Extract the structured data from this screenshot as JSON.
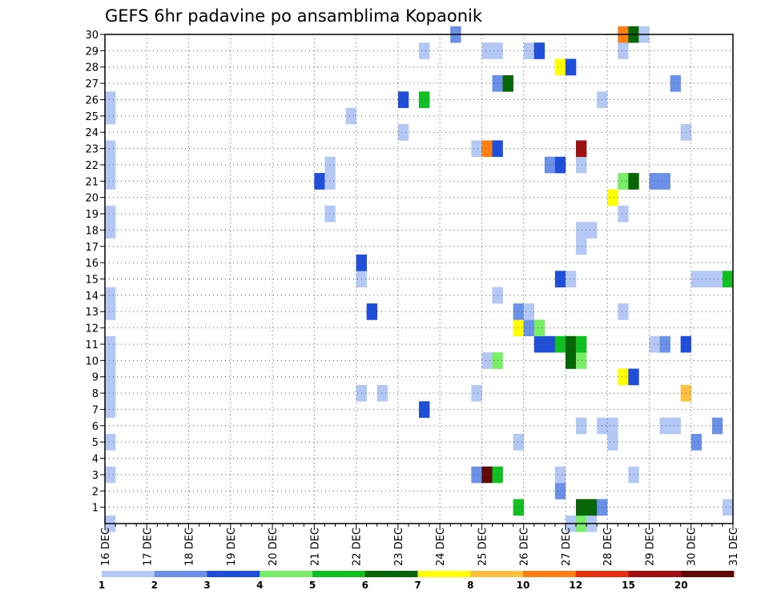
{
  "chart_data": {
    "type": "heatmap",
    "title": "GEFS 6hr padavine po ansamblima Kopaonik",
    "x_labels": [
      "16 DEC",
      "17 DEC",
      "18 DEC",
      "19 DEC",
      "20 DEC",
      "21 DEC",
      "22 DEC",
      "23 DEC",
      "24 DEC",
      "25 DEC",
      "26 DEC",
      "27 DEC",
      "28 DEC",
      "29 DEC",
      "30 DEC",
      "31 DEC"
    ],
    "y_labels": [
      "1",
      "2",
      "3",
      "4",
      "5",
      "6",
      "7",
      "8",
      "9",
      "10",
      "11",
      "12",
      "13",
      "14",
      "15",
      "16",
      "17",
      "18",
      "19",
      "20",
      "21",
      "22",
      "23",
      "24",
      "25",
      "26",
      "27",
      "28",
      "29",
      "30"
    ],
    "xlim": [
      0,
      60
    ],
    "ylim": [
      0,
      30
    ],
    "x_units": "6-hour steps from 16 DEC 00Z",
    "grid": true,
    "colorbar": {
      "labels": [
        "1",
        "2",
        "3",
        "4",
        "5",
        "6",
        "7",
        "8",
        "10",
        "12",
        "15",
        "20"
      ],
      "colors": [
        "#b4c8f5",
        "#6a90e8",
        "#1f4fd8",
        "#77ee66",
        "#10c020",
        "#066606",
        "#ffff00",
        "#ffc040",
        "#ff8010",
        "#e83010",
        "#a01010",
        "#600808"
      ]
    },
    "cells": [
      {
        "x": 0,
        "y": 0,
        "v": 1
      },
      {
        "x": 0,
        "y": 3,
        "v": 1
      },
      {
        "x": 0,
        "y": 5,
        "v": 1
      },
      {
        "x": 0,
        "y": 7,
        "v": 1
      },
      {
        "x": 0,
        "y": 8,
        "v": 1
      },
      {
        "x": 0,
        "y": 9,
        "v": 1
      },
      {
        "x": 0,
        "y": 10,
        "v": 1
      },
      {
        "x": 0,
        "y": 11,
        "v": 1
      },
      {
        "x": 0,
        "y": 13,
        "v": 1
      },
      {
        "x": 0,
        "y": 14,
        "v": 1
      },
      {
        "x": 0,
        "y": 18,
        "v": 1
      },
      {
        "x": 0,
        "y": 19,
        "v": 1
      },
      {
        "x": 0,
        "y": 21,
        "v": 1
      },
      {
        "x": 0,
        "y": 22,
        "v": 1
      },
      {
        "x": 0,
        "y": 23,
        "v": 1
      },
      {
        "x": 0,
        "y": 25,
        "v": 1
      },
      {
        "x": 0,
        "y": 26,
        "v": 1
      },
      {
        "x": 20,
        "y": 21,
        "v": 3
      },
      {
        "x": 21,
        "y": 21,
        "v": 1
      },
      {
        "x": 21,
        "y": 22,
        "v": 1
      },
      {
        "x": 21,
        "y": 19,
        "v": 1
      },
      {
        "x": 23,
        "y": 25,
        "v": 1
      },
      {
        "x": 24,
        "y": 8,
        "v": 1
      },
      {
        "x": 24,
        "y": 15,
        "v": 1
      },
      {
        "x": 24,
        "y": 16,
        "v": 3
      },
      {
        "x": 25,
        "y": 13,
        "v": 3
      },
      {
        "x": 26,
        "y": 8,
        "v": 1
      },
      {
        "x": 28,
        "y": 24,
        "v": 1
      },
      {
        "x": 28,
        "y": 26,
        "v": 3
      },
      {
        "x": 30,
        "y": 7,
        "v": 3
      },
      {
        "x": 30,
        "y": 26,
        "v": 5
      },
      {
        "x": 30,
        "y": 29,
        "v": 1
      },
      {
        "x": 33,
        "y": 30,
        "v": 2
      },
      {
        "x": 35,
        "y": 3,
        "v": 2
      },
      {
        "x": 35,
        "y": 8,
        "v": 1
      },
      {
        "x": 35,
        "y": 23,
        "v": 1
      },
      {
        "x": 36,
        "y": 3,
        "v": 20
      },
      {
        "x": 36,
        "y": 10,
        "v": 1
      },
      {
        "x": 36,
        "y": 23,
        "v": 10
      },
      {
        "x": 36,
        "y": 29,
        "v": 1
      },
      {
        "x": 37,
        "y": 3,
        "v": 5
      },
      {
        "x": 37,
        "y": 10,
        "v": 4
      },
      {
        "x": 37,
        "y": 14,
        "v": 1
      },
      {
        "x": 37,
        "y": 23,
        "v": 3
      },
      {
        "x": 37,
        "y": 27,
        "v": 2
      },
      {
        "x": 37,
        "y": 29,
        "v": 1
      },
      {
        "x": 38,
        "y": 27,
        "v": 6
      },
      {
        "x": 39,
        "y": 1,
        "v": 5
      },
      {
        "x": 39,
        "y": 5,
        "v": 1
      },
      {
        "x": 39,
        "y": 12,
        "v": 7
      },
      {
        "x": 39,
        "y": 13,
        "v": 2
      },
      {
        "x": 40,
        "y": 12,
        "v": 2
      },
      {
        "x": 40,
        "y": 13,
        "v": 1
      },
      {
        "x": 40,
        "y": 29,
        "v": 1
      },
      {
        "x": 41,
        "y": 11,
        "v": 3
      },
      {
        "x": 41,
        "y": 12,
        "v": 4
      },
      {
        "x": 41,
        "y": 29,
        "v": 3
      },
      {
        "x": 42,
        "y": 11,
        "v": 3
      },
      {
        "x": 42,
        "y": 22,
        "v": 2
      },
      {
        "x": 43,
        "y": 2,
        "v": 2
      },
      {
        "x": 43,
        "y": 3,
        "v": 1
      },
      {
        "x": 43,
        "y": 11,
        "v": 5
      },
      {
        "x": 43,
        "y": 15,
        "v": 3
      },
      {
        "x": 43,
        "y": 22,
        "v": 3
      },
      {
        "x": 43,
        "y": 28,
        "v": 7
      },
      {
        "x": 44,
        "y": 0,
        "v": 1
      },
      {
        "x": 44,
        "y": 10,
        "v": 6
      },
      {
        "x": 44,
        "y": 11,
        "v": 6
      },
      {
        "x": 44,
        "y": 15,
        "v": 1
      },
      {
        "x": 44,
        "y": 28,
        "v": 3
      },
      {
        "x": 45,
        "y": 0,
        "v": 4
      },
      {
        "x": 45,
        "y": 1,
        "v": 6
      },
      {
        "x": 45,
        "y": 6,
        "v": 1
      },
      {
        "x": 45,
        "y": 10,
        "v": 4
      },
      {
        "x": 45,
        "y": 11,
        "v": 5
      },
      {
        "x": 45,
        "y": 17,
        "v": 1
      },
      {
        "x": 45,
        "y": 18,
        "v": 1
      },
      {
        "x": 45,
        "y": 22,
        "v": 1
      },
      {
        "x": 45,
        "y": 23,
        "v": 15
      },
      {
        "x": 46,
        "y": 0,
        "v": 1
      },
      {
        "x": 46,
        "y": 1,
        "v": 6
      },
      {
        "x": 46,
        "y": 18,
        "v": 1
      },
      {
        "x": 47,
        "y": 1,
        "v": 2
      },
      {
        "x": 47,
        "y": 6,
        "v": 1
      },
      {
        "x": 47,
        "y": 26,
        "v": 1
      },
      {
        "x": 48,
        "y": 5,
        "v": 1
      },
      {
        "x": 48,
        "y": 6,
        "v": 1
      },
      {
        "x": 48,
        "y": 20,
        "v": 7
      },
      {
        "x": 49,
        "y": 9,
        "v": 7
      },
      {
        "x": 49,
        "y": 13,
        "v": 1
      },
      {
        "x": 49,
        "y": 19,
        "v": 1
      },
      {
        "x": 49,
        "y": 21,
        "v": 4
      },
      {
        "x": 49,
        "y": 29,
        "v": 1
      },
      {
        "x": 49,
        "y": 30,
        "v": 10
      },
      {
        "x": 50,
        "y": 3,
        "v": 1
      },
      {
        "x": 50,
        "y": 9,
        "v": 3
      },
      {
        "x": 50,
        "y": 21,
        "v": 6
      },
      {
        "x": 50,
        "y": 30,
        "v": 6
      },
      {
        "x": 51,
        "y": 30,
        "v": 1
      },
      {
        "x": 52,
        "y": 11,
        "v": 1
      },
      {
        "x": 52,
        "y": 21,
        "v": 2
      },
      {
        "x": 53,
        "y": 6,
        "v": 1
      },
      {
        "x": 53,
        "y": 11,
        "v": 2
      },
      {
        "x": 53,
        "y": 21,
        "v": 2
      },
      {
        "x": 54,
        "y": 6,
        "v": 1
      },
      {
        "x": 54,
        "y": 27,
        "v": 2
      },
      {
        "x": 55,
        "y": 8,
        "v": 8
      },
      {
        "x": 55,
        "y": 11,
        "v": 3
      },
      {
        "x": 55,
        "y": 24,
        "v": 1
      },
      {
        "x": 56,
        "y": 5,
        "v": 2
      },
      {
        "x": 56,
        "y": 15,
        "v": 1
      },
      {
        "x": 57,
        "y": 15,
        "v": 1
      },
      {
        "x": 58,
        "y": 6,
        "v": 2
      },
      {
        "x": 58,
        "y": 15,
        "v": 1
      },
      {
        "x": 59,
        "y": 1,
        "v": 1
      },
      {
        "x": 59,
        "y": 15,
        "v": 5
      }
    ]
  }
}
